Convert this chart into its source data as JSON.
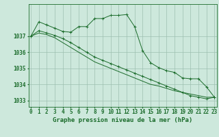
{
  "title": "Graphe pression niveau de la mer (hPa)",
  "xlabel_hours": [
    0,
    1,
    2,
    3,
    4,
    5,
    6,
    7,
    8,
    9,
    10,
    11,
    12,
    13,
    14,
    15,
    16,
    17,
    18,
    19,
    20,
    21,
    22,
    23
  ],
  "series1": [
    1037.0,
    1037.9,
    1037.7,
    1037.5,
    1037.3,
    1037.25,
    1037.6,
    1037.6,
    1038.1,
    1038.1,
    1038.3,
    1038.3,
    1038.35,
    1037.6,
    1036.1,
    1035.35,
    1035.05,
    1034.85,
    1034.75,
    1034.4,
    1034.35,
    1034.35,
    1033.85,
    1033.2
  ],
  "series2": [
    1037.0,
    1037.35,
    1037.2,
    1037.05,
    1036.85,
    1036.6,
    1036.3,
    1036.0,
    1035.7,
    1035.5,
    1035.3,
    1035.1,
    1034.9,
    1034.7,
    1034.5,
    1034.3,
    1034.1,
    1033.9,
    1033.7,
    1033.5,
    1033.3,
    1033.2,
    1033.1,
    1033.2
  ],
  "series3": [
    1037.0,
    1037.2,
    1037.1,
    1036.9,
    1036.6,
    1036.3,
    1036.0,
    1035.7,
    1035.4,
    1035.2,
    1035.0,
    1034.8,
    1034.6,
    1034.4,
    1034.2,
    1034.0,
    1033.9,
    1033.75,
    1033.6,
    1033.5,
    1033.4,
    1033.3,
    1033.2,
    1033.2
  ],
  "ylim": [
    1032.6,
    1039.0
  ],
  "yticks": [
    1033,
    1034,
    1035,
    1036,
    1037
  ],
  "bg_color": "#cde8dc",
  "grid_color": "#9dbfb0",
  "line_color": "#1a6b2a",
  "marker_color": "#1a6b2a",
  "title_fontsize": 6.5,
  "tick_fontsize": 5.5
}
